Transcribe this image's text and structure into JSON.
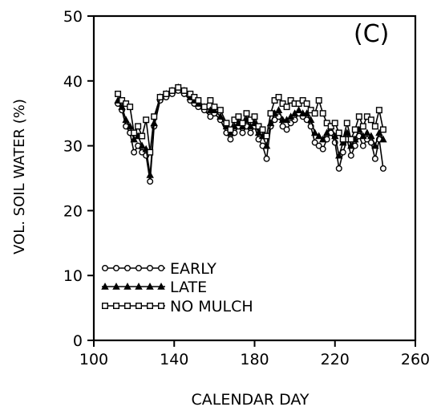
{
  "chart_data": {
    "type": "line",
    "panel_label": "(C)",
    "xlabel": "CALENDAR DAY",
    "ylabel": "VOL. SOIL WATER (%)",
    "xlim": [
      100,
      260
    ],
    "ylim": [
      0,
      50
    ],
    "x_ticks": [
      100,
      140,
      180,
      220,
      260
    ],
    "y_ticks": [
      0,
      10,
      20,
      30,
      40,
      50
    ],
    "grid": false,
    "legend_position": "bottom-left",
    "series": [
      {
        "name": "EARLY",
        "marker": "circle",
        "x": [
          112,
          114,
          116,
          118,
          120,
          122,
          124,
          126,
          128,
          130,
          133,
          136,
          139,
          142,
          145,
          148,
          150,
          152,
          155,
          158,
          160,
          163,
          166,
          168,
          170,
          172,
          174,
          176,
          178,
          180,
          182,
          184,
          186,
          188,
          190,
          192,
          194,
          196,
          198,
          200,
          202,
          204,
          206,
          208,
          210,
          212,
          214,
          216,
          218,
          220,
          222,
          224,
          226,
          228,
          230,
          232,
          234,
          236,
          238,
          240,
          242,
          244
        ],
        "values": [
          36.5,
          35.5,
          33,
          32,
          29,
          30,
          29,
          28.5,
          24.5,
          33,
          37,
          37.5,
          38,
          38.5,
          38,
          37,
          36.5,
          36,
          35.5,
          34.5,
          35,
          34,
          32,
          31,
          32,
          33,
          32,
          33,
          32,
          33,
          31,
          30,
          28,
          33,
          34,
          34.5,
          33,
          32.5,
          33.5,
          34,
          35,
          34.5,
          34,
          33,
          30.5,
          30,
          29.5,
          31,
          32,
          30.5,
          26.5,
          29,
          31,
          28.5,
          30,
          31.5,
          30,
          31,
          30.5,
          28,
          31,
          26.5
        ]
      },
      {
        "name": "LATE",
        "marker": "triangle",
        "x": [
          112,
          114,
          116,
          118,
          120,
          122,
          124,
          126,
          128,
          130,
          133,
          136,
          139,
          142,
          145,
          148,
          150,
          152,
          155,
          158,
          160,
          163,
          166,
          168,
          170,
          172,
          174,
          176,
          178,
          180,
          182,
          184,
          186,
          188,
          190,
          192,
          194,
          196,
          198,
          200,
          202,
          204,
          206,
          208,
          210,
          212,
          214,
          216,
          218,
          220,
          222,
          224,
          226,
          228,
          230,
          232,
          234,
          236,
          238,
          240,
          242,
          244
        ],
        "values": [
          37,
          36,
          34,
          33,
          31,
          31.5,
          30,
          29.5,
          25.5,
          33.5,
          37.5,
          38,
          38.5,
          39,
          38.5,
          37.5,
          37,
          36.5,
          36,
          35.5,
          35.5,
          34.5,
          33,
          32,
          33,
          33.5,
          33,
          34,
          33,
          33.5,
          32,
          31.5,
          30,
          33.5,
          35,
          35.5,
          34,
          34,
          34.5,
          35,
          35.5,
          35,
          35,
          34,
          32,
          31.5,
          31,
          32,
          33,
          31.5,
          28.5,
          30.5,
          32,
          30,
          31,
          32.5,
          31.5,
          32,
          31.5,
          30,
          32,
          31
        ]
      },
      {
        "name": "NO MULCH",
        "marker": "square",
        "x": [
          112,
          114,
          116,
          118,
          120,
          122,
          124,
          126,
          128,
          130,
          133,
          136,
          139,
          142,
          145,
          148,
          150,
          152,
          155,
          158,
          160,
          163,
          166,
          168,
          170,
          172,
          174,
          176,
          178,
          180,
          182,
          184,
          186,
          188,
          190,
          192,
          194,
          196,
          198,
          200,
          202,
          204,
          206,
          208,
          210,
          212,
          214,
          216,
          218,
          220,
          222,
          224,
          226,
          228,
          230,
          232,
          234,
          236,
          238,
          240,
          242,
          244
        ],
        "values": [
          38,
          37,
          36.5,
          36,
          32,
          33,
          31.5,
          34,
          29,
          34.5,
          37.5,
          38,
          38.5,
          39,
          38.5,
          38,
          37.5,
          37,
          36,
          37,
          36,
          35.5,
          33.5,
          32.5,
          34,
          34.5,
          33.5,
          35,
          34,
          34.5,
          33,
          32.5,
          31.5,
          35,
          37,
          37.5,
          36.5,
          36,
          37,
          36.5,
          36.5,
          37,
          36.5,
          35.5,
          35,
          37,
          35,
          33.5,
          33,
          33.5,
          32,
          31,
          33.5,
          31,
          32.5,
          34.5,
          33,
          34.5,
          34,
          33,
          35.5,
          32.5
        ]
      }
    ]
  }
}
